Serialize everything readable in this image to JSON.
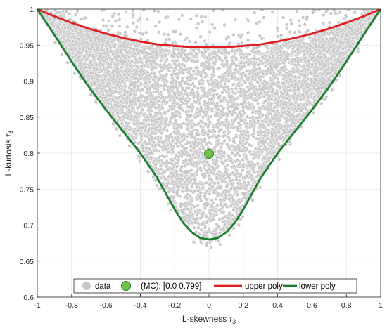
{
  "chart_data": {
    "type": "scatter",
    "xlabel": "L-skewness",
    "xlabel_symbol": "τ",
    "xlabel_sub": "3",
    "ylabel": "L-kurtosis",
    "ylabel_symbol": "τ",
    "ylabel_sub": "4",
    "xlim": [
      -1,
      1
    ],
    "ylim": [
      0.6,
      1
    ],
    "xticks": [
      -1,
      -0.8,
      -0.6,
      -0.4,
      -0.2,
      0,
      0.2,
      0.4,
      0.6,
      0.8,
      1
    ],
    "xtick_labels": [
      "-1",
      "-0.8",
      "-0.6",
      "-0.4",
      "-0.2",
      "0",
      "0.2",
      "0.4",
      "0.6",
      "0.8",
      "1"
    ],
    "yticks": [
      0.6,
      0.65,
      0.7,
      0.75,
      0.8,
      0.85,
      0.9,
      0.95,
      1
    ],
    "ytick_labels": [
      "0.6",
      "0.65",
      "0.7",
      "0.75",
      "0.8",
      "0.85",
      "0.9",
      "0.95",
      "1"
    ],
    "grid": true,
    "legend_placement": "bottom",
    "legend": [
      {
        "label": "data",
        "marker": "circle",
        "color": "#c8c8c8"
      },
      {
        "label": "(MC): [0.0 0.799]",
        "marker": "circle",
        "color": "#77c043"
      },
      {
        "label": "upper poly",
        "marker": "line",
        "color": "#e02020"
      },
      {
        "label": "lower poly",
        "marker": "line",
        "color": "#1a7f2e"
      }
    ],
    "series": [
      {
        "name": "data",
        "kind": "scatter-cloud",
        "color": "#c8c8c8",
        "note_region": "dense cloud filling the region between lower and upper poly, with scattered points above upper poly up to 1"
      },
      {
        "name": "(MC): [0.0 0.799]",
        "kind": "point",
        "color": "#77c043",
        "x": [
          0.0
        ],
        "y": [
          0.799
        ]
      },
      {
        "name": "upper poly",
        "kind": "line",
        "color": "#e02020",
        "x": [
          -1,
          -0.9,
          -0.8,
          -0.7,
          -0.6,
          -0.5,
          -0.4,
          -0.3,
          -0.2,
          -0.1,
          0,
          0.1,
          0.2,
          0.3,
          0.4,
          0.5,
          0.6,
          0.7,
          0.8,
          0.9,
          1
        ],
        "y": [
          1.0,
          0.99,
          0.981,
          0.973,
          0.966,
          0.96,
          0.955,
          0.951,
          0.949,
          0.947,
          0.947,
          0.947,
          0.949,
          0.951,
          0.955,
          0.96,
          0.966,
          0.973,
          0.981,
          0.99,
          1.0
        ]
      },
      {
        "name": "lower poly",
        "kind": "line",
        "color": "#1a7f2e",
        "x": [
          -1,
          -0.9,
          -0.8,
          -0.7,
          -0.6,
          -0.5,
          -0.4,
          -0.3,
          -0.2,
          -0.15,
          -0.1,
          -0.05,
          0,
          0.05,
          0.1,
          0.15,
          0.2,
          0.3,
          0.4,
          0.5,
          0.6,
          0.7,
          0.8,
          0.9,
          1
        ],
        "y": [
          1.0,
          0.964,
          0.927,
          0.892,
          0.86,
          0.83,
          0.8,
          0.765,
          0.722,
          0.703,
          0.69,
          0.682,
          0.68,
          0.682,
          0.69,
          0.703,
          0.722,
          0.765,
          0.8,
          0.83,
          0.86,
          0.892,
          0.927,
          0.964,
          1.0
        ]
      }
    ]
  }
}
